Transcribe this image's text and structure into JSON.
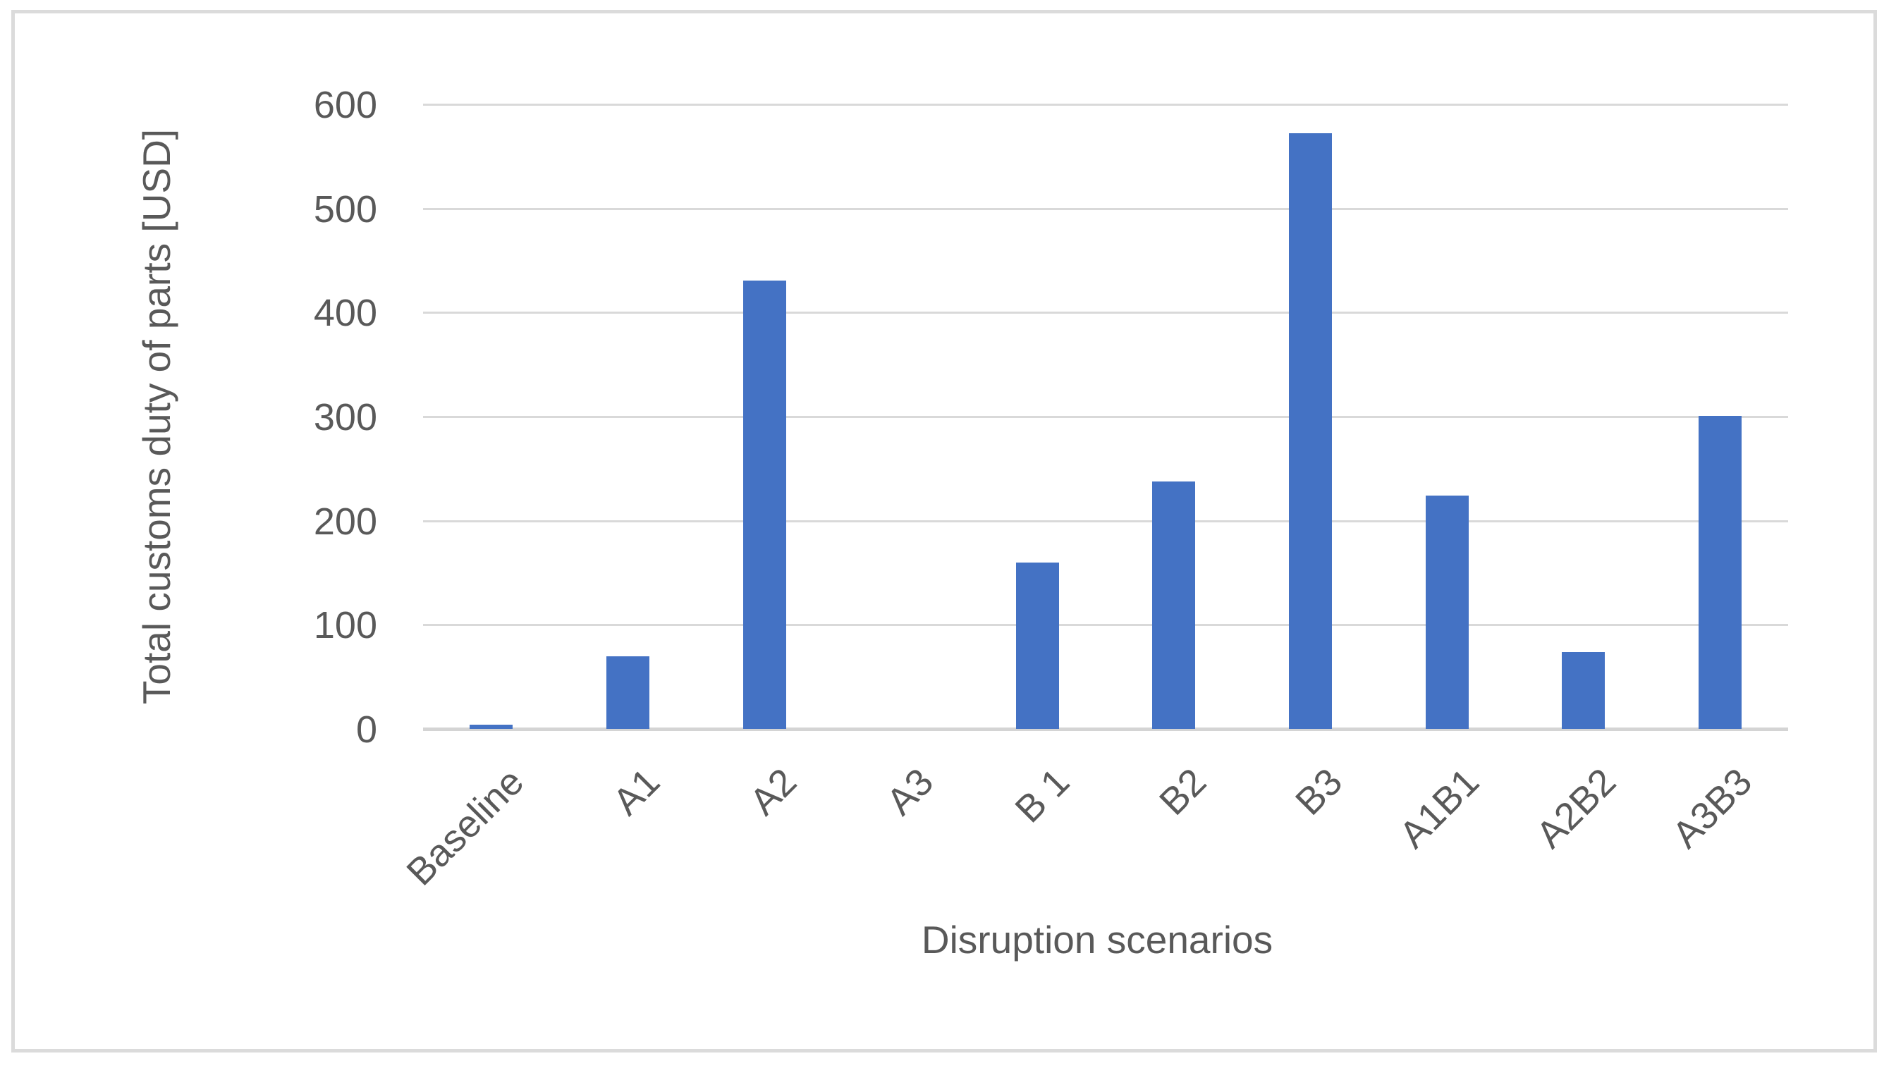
{
  "chart_data": {
    "type": "bar",
    "categories": [
      "Baseline",
      "A1",
      "A2",
      "A3",
      "B 1",
      "B2",
      "B3",
      "A1B1",
      "A2B2",
      "A3B3"
    ],
    "values": [
      4,
      70,
      431,
      0,
      160,
      238,
      572,
      224,
      74,
      301
    ],
    "title": "",
    "xlabel": "Disruption scenarios",
    "ylabel": "Total customs duty of parts [USD]",
    "ylim": [
      0,
      600
    ],
    "yticks": [
      0,
      100,
      200,
      300,
      400,
      500,
      600
    ],
    "grid": true,
    "legend_position": "none",
    "colors": {
      "bar": "#4472C4",
      "gridline": "#D9D9D9",
      "axis_line": "#D4D4D4",
      "text": "#595959",
      "frame_border": "#DBDBDB"
    }
  }
}
